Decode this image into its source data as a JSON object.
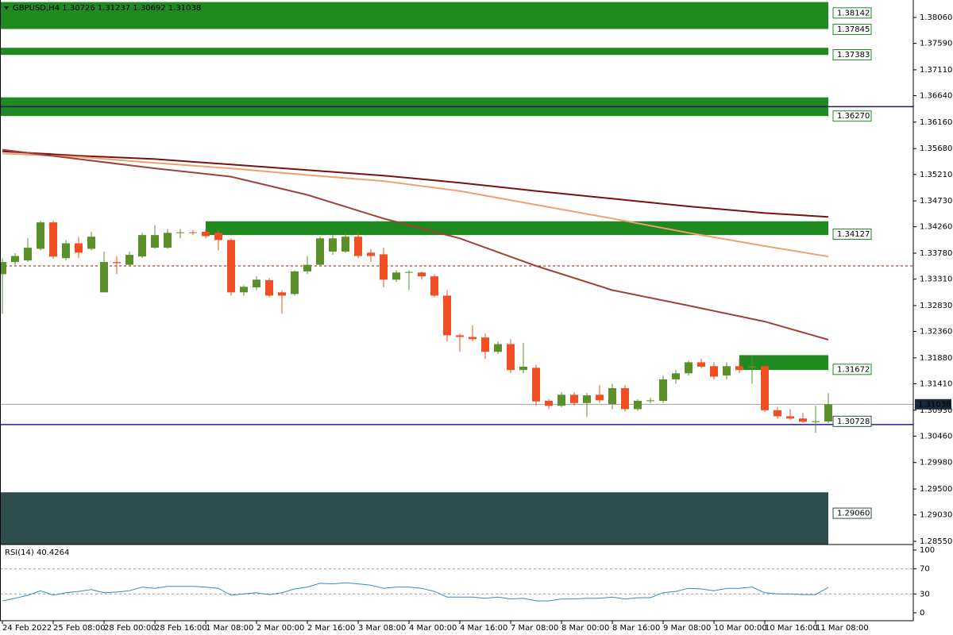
{
  "chart_data": {
    "type": "candlestick",
    "title": "GBPUSD,H4 1.30726 1.31237 1.30692 1.31038",
    "categories": [
      "24 Feb 2022",
      null,
      null,
      null,
      "25 Feb 08:00",
      null,
      null,
      null,
      "28 Feb 00:00",
      null,
      null,
      null,
      "28 Feb 16:00",
      null,
      null,
      null,
      "1 Mar 08:00",
      null,
      null,
      null,
      "2 Mar 00:00",
      null,
      null,
      null,
      "2 Mar 16:00",
      null,
      null,
      null,
      "3 Mar 08:00",
      null,
      null,
      null,
      "4 Mar 00:00",
      null,
      null,
      null,
      "4 Mar 16:00",
      null,
      null,
      null,
      "7 Mar 08:00",
      null,
      null,
      null,
      "8 Mar 00:00",
      null,
      null,
      null,
      "8 Mar 16:00",
      null,
      null,
      null,
      "9 Mar 08:00",
      null,
      null,
      null,
      "10 Mar 00:00",
      null,
      null,
      null,
      "10 Mar 16:00",
      null,
      null,
      null,
      "11 Mar 08:00",
      null
    ],
    "ohlc": [
      [
        1.334,
        1.3369,
        1.3268,
        1.3362
      ],
      [
        1.3362,
        1.3378,
        1.3357,
        1.3373
      ],
      [
        1.3365,
        1.3405,
        1.3362,
        1.3388
      ],
      [
        1.3386,
        1.3437,
        1.3383,
        1.3434
      ],
      [
        1.3434,
        1.3437,
        1.3368,
        1.3372
      ],
      [
        1.3369,
        1.3402,
        1.3365,
        1.3396
      ],
      [
        1.3396,
        1.3408,
        1.3369,
        1.3379
      ],
      [
        1.3386,
        1.3417,
        1.3383,
        1.3408
      ],
      [
        1.3307,
        1.3381,
        1.3307,
        1.3362
      ],
      [
        1.3362,
        1.3373,
        1.334,
        1.336
      ],
      [
        1.3357,
        1.3381,
        1.3355,
        1.3375
      ],
      [
        1.3372,
        1.3415,
        1.3369,
        1.3411
      ],
      [
        1.3388,
        1.3429,
        1.3386,
        1.3411
      ],
      [
        1.3388,
        1.3422,
        1.3386,
        1.3415
      ],
      [
        1.3415,
        1.3422,
        1.3405,
        1.3416
      ],
      [
        1.3416,
        1.342,
        1.3411,
        1.3415
      ],
      [
        1.3417,
        1.3422,
        1.3405,
        1.3409
      ],
      [
        1.3415,
        1.342,
        1.3383,
        1.3402
      ],
      [
        1.3402,
        1.3405,
        1.3301,
        1.3307
      ],
      [
        1.3307,
        1.332,
        1.3301,
        1.3317
      ],
      [
        1.3316,
        1.3336,
        1.3311,
        1.333
      ],
      [
        1.3329,
        1.3333,
        1.3298,
        1.3301
      ],
      [
        1.3307,
        1.3311,
        1.3268,
        1.3301
      ],
      [
        1.3304,
        1.3347,
        1.3301,
        1.3345
      ],
      [
        1.3345,
        1.3373,
        1.334,
        1.3357
      ],
      [
        1.3357,
        1.3408,
        1.3355,
        1.3405
      ],
      [
        1.3381,
        1.3411,
        1.3375,
        1.3405
      ],
      [
        1.3381,
        1.3415,
        1.3379,
        1.3408
      ],
      [
        1.3408,
        1.3417,
        1.3369,
        1.3373
      ],
      [
        1.3379,
        1.3386,
        1.3362,
        1.3373
      ],
      [
        1.3376,
        1.3388,
        1.3316,
        1.333
      ],
      [
        1.333,
        1.3347,
        1.3326,
        1.3343
      ],
      [
        1.3343,
        1.3347,
        1.3311,
        1.3344
      ],
      [
        1.3343,
        1.3345,
        1.333,
        1.3336
      ],
      [
        1.3336,
        1.334,
        1.3298,
        1.3301
      ],
      [
        1.3301,
        1.3311,
        1.3218,
        1.3229
      ],
      [
        1.3229,
        1.3232,
        1.3199,
        1.3226
      ],
      [
        1.3226,
        1.3247,
        1.3218,
        1.3222
      ],
      [
        1.3225,
        1.3232,
        1.3186,
        1.3199
      ],
      [
        1.3199,
        1.3218,
        1.3195,
        1.3213
      ],
      [
        1.3213,
        1.3222,
        1.316,
        1.3166
      ],
      [
        1.3166,
        1.3215,
        1.316,
        1.3172
      ],
      [
        1.317,
        1.3175,
        1.3101,
        1.3109
      ],
      [
        1.311,
        1.3113,
        1.3095,
        1.3101
      ],
      [
        1.3101,
        1.3126,
        1.3098,
        1.3121
      ],
      [
        1.3121,
        1.3126,
        1.3101,
        1.3106
      ],
      [
        1.3106,
        1.3124,
        1.3081,
        1.312
      ],
      [
        1.3121,
        1.3139,
        1.3106,
        1.3111
      ],
      [
        1.3104,
        1.3141,
        1.3095,
        1.3133
      ],
      [
        1.3133,
        1.3139,
        1.309,
        1.3095
      ],
      [
        1.3095,
        1.3113,
        1.3092,
        1.311
      ],
      [
        1.311,
        1.3116,
        1.3106,
        1.3111
      ],
      [
        1.311,
        1.3156,
        1.3106,
        1.3149
      ],
      [
        1.3149,
        1.3166,
        1.3141,
        1.316
      ],
      [
        1.316,
        1.3183,
        1.3156,
        1.318
      ],
      [
        1.318,
        1.3186,
        1.3169,
        1.3172
      ],
      [
        1.3173,
        1.318,
        1.3149,
        1.3154
      ],
      [
        1.3156,
        1.318,
        1.3149,
        1.3173
      ],
      [
        1.3173,
        1.3186,
        1.316,
        1.3166
      ],
      [
        1.317,
        1.3192,
        1.3141,
        1.3173
      ],
      [
        1.3173,
        1.3175,
        1.309,
        1.3093
      ],
      [
        1.3093,
        1.3099,
        1.3078,
        1.3082
      ],
      [
        1.3082,
        1.3095,
        1.3075,
        1.3078
      ],
      [
        1.3078,
        1.3088,
        1.307,
        1.3072
      ],
      [
        1.3072,
        1.3101,
        1.3052,
        1.3073
      ],
      [
        1.30726,
        1.31237,
        1.30692,
        1.31038
      ]
    ],
    "bull_color": "#5a8f29",
    "bear_color": "#f04e23",
    "ylim": [
      1.28492,
      1.38377
    ],
    "yticks": [
      {
        "value": 1.3806,
        "label": "1.38060"
      },
      {
        "value": 1.3759,
        "label": "1.37590"
      },
      {
        "value": 1.3711,
        "label": "1.37110"
      },
      {
        "value": 1.3664,
        "label": "1.36640"
      },
      {
        "value": 1.3616,
        "label": "1.36160"
      },
      {
        "value": 1.3568,
        "label": "1.35680"
      },
      {
        "value": 1.3521,
        "label": "1.35210"
      },
      {
        "value": 1.3473,
        "label": "1.34730"
      },
      {
        "value": 1.3426,
        "label": "1.34260"
      },
      {
        "value": 1.3378,
        "label": "1.33780"
      },
      {
        "value": 1.3331,
        "label": "1.33310"
      },
      {
        "value": 1.3283,
        "label": "1.32830"
      },
      {
        "value": 1.3236,
        "label": "1.32360"
      },
      {
        "value": 1.3188,
        "label": "1.31880"
      },
      {
        "value": 1.3141,
        "label": "1.31410"
      },
      {
        "value": 1.3093,
        "label": "1.30930"
      },
      {
        "value": 1.3046,
        "label": "1.30460"
      },
      {
        "value": 1.2998,
        "label": "1.29980"
      },
      {
        "value": 1.295,
        "label": "1.29500"
      },
      {
        "value": 1.2903,
        "label": "1.29030"
      },
      {
        "value": 1.2855,
        "label": "1.28550"
      }
    ],
    "moving_averages": [
      {
        "color": "#7a1010",
        "x": [
          0,
          6,
          12,
          18,
          24,
          30,
          36,
          42,
          48,
          54,
          60,
          65
        ],
        "values": [
          1.3563,
          1.3555,
          1.3549,
          1.3539,
          1.3529,
          1.3519,
          1.3506,
          1.3491,
          1.3477,
          1.3463,
          1.3451,
          1.3444
        ]
      },
      {
        "color": "#f0a070",
        "x": [
          0,
          6,
          12,
          18,
          24,
          30,
          36,
          42,
          48,
          54,
          60,
          65
        ],
        "values": [
          1.3559,
          1.3553,
          1.3542,
          1.3532,
          1.352,
          1.3509,
          1.3491,
          1.3466,
          1.3441,
          1.3415,
          1.3391,
          1.3372
        ]
      },
      {
        "color": "#a0413c",
        "x": [
          0,
          6,
          12,
          18,
          24,
          30,
          36,
          42,
          48,
          54,
          60,
          65
        ],
        "values": [
          1.3566,
          1.3549,
          1.3532,
          1.3517,
          1.3484,
          1.3441,
          1.3405,
          1.3355,
          1.3311,
          1.3283,
          1.3254,
          1.3221
        ]
      }
    ],
    "zones": [
      {
        "high": 1.3834,
        "low": 1.3785,
        "from_candle": null,
        "color": "#1f8a1f"
      },
      {
        "high": 1.3751,
        "low": 1.3738,
        "from_candle": null,
        "color": "#1f8a1f"
      },
      {
        "high": 1.3661,
        "low": 1.3627,
        "from_candle": null,
        "color": "#1f8a1f"
      },
      {
        "high": 1.3436,
        "low": 1.3411,
        "from_candle": 16,
        "color": "#1f8a1f"
      },
      {
        "high": 1.3193,
        "low": 1.3166,
        "from_candle": 58,
        "color": "#1f8a1f"
      },
      {
        "high": 1.2944,
        "low": 1.2849,
        "from_candle": null,
        "color": "#2f4f4f"
      }
    ],
    "levels": [
      {
        "value": 1.38142,
        "label": "1.38142",
        "color": "#1f8a1f"
      },
      {
        "value": 1.37845,
        "label": "1.37845",
        "color": "#1f8a1f"
      },
      {
        "value": 1.37383,
        "label": "1.37383",
        "color": "#1f8a1f"
      },
      {
        "value": 1.3627,
        "label": "1.36270",
        "color": "#1f8a1f"
      },
      {
        "value": 1.34127,
        "label": "1.34127",
        "color": "#1f8a1f"
      },
      {
        "value": 1.31672,
        "label": "1.31672",
        "color": "#1f8a1f"
      },
      {
        "value": 1.30728,
        "label": "1.30728",
        "color": "#2f4f4f"
      },
      {
        "value": 1.2906,
        "label": "1.29060",
        "color": "#2f4f4f"
      }
    ],
    "hlines": [
      {
        "value": 1.3644,
        "color": "#1a1a6e",
        "dashed": false
      },
      {
        "value": 1.3067,
        "color": "#2a1a8e",
        "dashed": false
      },
      {
        "value": 1.3355,
        "color": "#8b1a1a",
        "dashed": true
      }
    ],
    "last_price": 1.31038,
    "rsi": {
      "label": "RSI(14) 40.4264",
      "color": "#3a87c8",
      "ylim": [
        -12.7,
        107.6
      ],
      "yticks": [
        100,
        70,
        30,
        0
      ],
      "guide_levels": [
        70,
        30
      ],
      "values": [
        19,
        23,
        28,
        35,
        28,
        32,
        34,
        37,
        32,
        33,
        35,
        41,
        39,
        42,
        42,
        42,
        41,
        39,
        28,
        30,
        32,
        29,
        32,
        38,
        41,
        47,
        46,
        48,
        46,
        44,
        39,
        41,
        41,
        39,
        34,
        25,
        25,
        25,
        23,
        25,
        22,
        23,
        19,
        19,
        22,
        22,
        23,
        23,
        25,
        22,
        24,
        24,
        32,
        34,
        39,
        38,
        35,
        39,
        39,
        41,
        32,
        30,
        30,
        29,
        29,
        40.4264
      ]
    }
  }
}
